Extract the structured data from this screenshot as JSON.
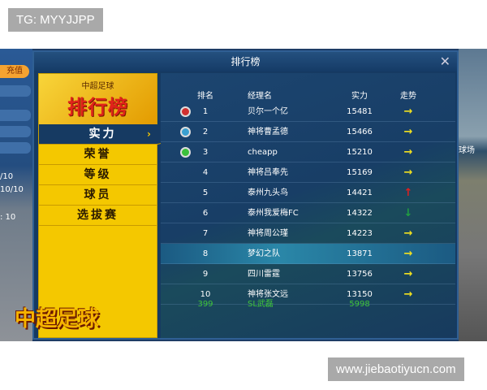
{
  "watermark_top": "TG: MYYJJPP",
  "watermark_bottom": "www.jiebaotiyucn.com",
  "side_left": {
    "charge_label": "充值",
    "texts": [
      "/10",
      "10/10",
      ": 10"
    ]
  },
  "side_right": {
    "text": "球场"
  },
  "dialog": {
    "title": "排行榜",
    "close_icon": "close-icon"
  },
  "left_panel": {
    "subtitle": "中超足球",
    "title": "排行榜",
    "logo": "中超足球",
    "menu": [
      {
        "label": "实力",
        "active": true
      },
      {
        "label": "荣誉"
      },
      {
        "label": "等级"
      },
      {
        "label": "球员"
      },
      {
        "label": "选拔赛"
      }
    ]
  },
  "table": {
    "headers": [
      "排名",
      "经理名",
      "实力",
      "走势"
    ],
    "rows": [
      {
        "rank": "1",
        "name": "贝尔一个亿",
        "score": "15481",
        "trend": "→",
        "medal": "#d03030"
      },
      {
        "rank": "2",
        "name": "神将曹孟德",
        "score": "15466",
        "trend": "→",
        "medal": "#3aa0d0"
      },
      {
        "rank": "3",
        "name": "cheapp",
        "score": "15210",
        "trend": "→",
        "medal": "#3cc03c"
      },
      {
        "rank": "4",
        "name": "神将吕奉先",
        "score": "15169",
        "trend": "→"
      },
      {
        "rank": "5",
        "name": "泰州九头鸟",
        "score": "14421",
        "trend": "↑"
      },
      {
        "rank": "6",
        "name": "泰州我爱梅FC",
        "score": "14322",
        "trend": "↓"
      },
      {
        "rank": "7",
        "name": "神将周公瑾",
        "score": "14223",
        "trend": "→"
      },
      {
        "rank": "8",
        "name": "梦幻之队",
        "score": "13871",
        "trend": "→",
        "selected": true
      },
      {
        "rank": "9",
        "name": "四川雷霆",
        "score": "13756",
        "trend": "→"
      },
      {
        "rank": "10",
        "name": "神将张文远",
        "score": "13150",
        "trend": "→"
      }
    ],
    "self_row": {
      "rank": "399",
      "name": "SL武磊",
      "score": "5998"
    },
    "colors": {
      "same": "#f0e020",
      "up": "#e02020",
      "down": "#20a040",
      "self": "#3fc43a"
    }
  }
}
